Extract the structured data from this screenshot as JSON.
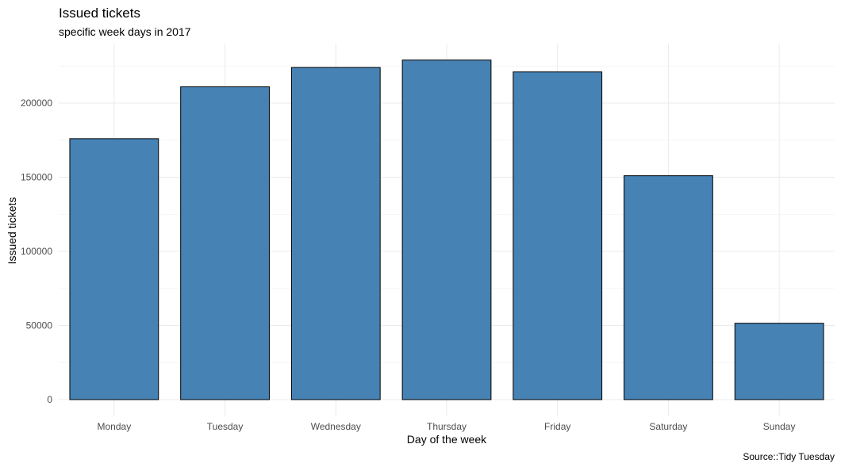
{
  "chart_data": {
    "type": "bar",
    "title": "Issued tickets",
    "subtitle": "specific week days in 2017",
    "xlabel": "Day of the week",
    "ylabel": "Issued tickets",
    "caption": "Source::Tidy Tuesday",
    "categories": [
      "Monday",
      "Tuesday",
      "Wednesday",
      "Thursday",
      "Friday",
      "Saturday",
      "Sunday"
    ],
    "values": [
      176000,
      211000,
      224000,
      229000,
      221000,
      151000,
      51500
    ],
    "yticks": [
      0,
      50000,
      100000,
      150000,
      200000
    ],
    "ytick_labels": [
      "0",
      "50000",
      "100000",
      "150000",
      "200000"
    ],
    "ylim": [
      0,
      240000
    ],
    "grid": true,
    "bar_color": "#4682b4",
    "bar_outline_color": "#000000"
  }
}
